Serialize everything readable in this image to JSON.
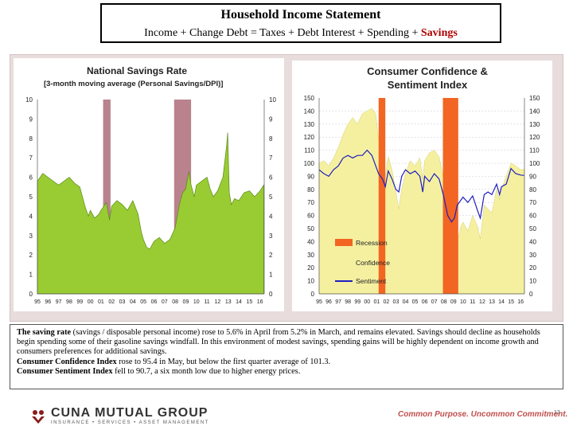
{
  "header": {
    "title": "Household Income Statement",
    "equation_main": "Income + Change Debt = Taxes + Debt Interest + Spending + ",
    "equation_highlight": "Savings"
  },
  "chart_data": [
    {
      "type": "area",
      "title": "National Savings Rate",
      "subtitle": "[3-month moving average (Personal Savings/DPI)]",
      "ylim": [
        0,
        10
      ],
      "y_ticks": [
        "0",
        "1",
        "2",
        "3",
        "4",
        "5",
        "6",
        "7",
        "8",
        "9",
        "10"
      ],
      "x_ticks": [
        "95",
        "96",
        "97",
        "98",
        "99",
        "00",
        "01",
        "02",
        "03",
        "04",
        "05",
        "06",
        "07",
        "08",
        "09",
        "10",
        "11",
        "12",
        "13",
        "14",
        "15",
        "16"
      ],
      "x_start": 1995,
      "x_end": 2016.4,
      "recessions": [
        [
          2001.2,
          2001.9
        ],
        [
          2007.9,
          2009.5
        ]
      ],
      "colors": {
        "area": "#99cc33",
        "area_edge": "#5a8a1a",
        "recession": "#b9828d"
      },
      "series": [
        {
          "values": [
            [
              1995.0,
              5.8
            ],
            [
              1995.5,
              6.2
            ],
            [
              1996.0,
              6.0
            ],
            [
              1996.5,
              5.8
            ],
            [
              1997.0,
              5.6
            ],
            [
              1997.5,
              5.8
            ],
            [
              1998.0,
              6.0
            ],
            [
              1998.5,
              5.7
            ],
            [
              1999.0,
              5.5
            ],
            [
              1999.5,
              4.5
            ],
            [
              1999.8,
              4.0
            ],
            [
              2000.0,
              4.3
            ],
            [
              2000.4,
              3.9
            ],
            [
              2000.8,
              4.1
            ],
            [
              2001.0,
              4.3
            ],
            [
              2001.5,
              4.7
            ],
            [
              2001.8,
              3.8
            ],
            [
              2002.0,
              4.5
            ],
            [
              2002.5,
              4.8
            ],
            [
              2003.0,
              4.6
            ],
            [
              2003.5,
              4.3
            ],
            [
              2004.0,
              4.8
            ],
            [
              2004.5,
              4.1
            ],
            [
              2004.8,
              3.2
            ],
            [
              2005.0,
              2.8
            ],
            [
              2005.3,
              2.4
            ],
            [
              2005.6,
              2.3
            ],
            [
              2006.0,
              2.7
            ],
            [
              2006.5,
              2.9
            ],
            [
              2007.0,
              2.6
            ],
            [
              2007.5,
              2.8
            ],
            [
              2008.0,
              3.4
            ],
            [
              2008.4,
              4.6
            ],
            [
              2008.7,
              5.2
            ],
            [
              2009.0,
              5.4
            ],
            [
              2009.3,
              6.3
            ],
            [
              2009.5,
              5.6
            ],
            [
              2009.8,
              5.0
            ],
            [
              2010.0,
              5.6
            ],
            [
              2010.5,
              5.8
            ],
            [
              2011.0,
              6.0
            ],
            [
              2011.3,
              5.4
            ],
            [
              2011.6,
              5.0
            ],
            [
              2012.0,
              5.3
            ],
            [
              2012.5,
              6.0
            ],
            [
              2012.85,
              7.6
            ],
            [
              2012.95,
              8.3
            ],
            [
              2013.1,
              5.2
            ],
            [
              2013.3,
              4.6
            ],
            [
              2013.6,
              4.9
            ],
            [
              2014.0,
              4.8
            ],
            [
              2014.5,
              5.2
            ],
            [
              2015.0,
              5.3
            ],
            [
              2015.5,
              5.0
            ],
            [
              2016.0,
              5.3
            ],
            [
              2016.35,
              5.6
            ]
          ]
        }
      ]
    },
    {
      "type": "line",
      "title": "Consumer Confidence & Sentiment Index",
      "ylim": [
        0,
        150
      ],
      "y_ticks": [
        "0",
        "10",
        "20",
        "30",
        "40",
        "50",
        "60",
        "70",
        "80",
        "90",
        "100",
        "110",
        "120",
        "130",
        "140",
        "150"
      ],
      "x_ticks": [
        "95",
        "96",
        "97",
        "98",
        "99",
        "00",
        "01",
        "02",
        "03",
        "04",
        "05",
        "06",
        "07",
        "08",
        "09",
        "10",
        "11",
        "12",
        "13",
        "14",
        "15",
        "16"
      ],
      "x_start": 1995,
      "x_end": 2016.4,
      "recessions": [
        [
          2001.2,
          2001.9
        ],
        [
          2007.9,
          2009.5
        ]
      ],
      "legend": {
        "placement": "bottom-left",
        "items": [
          "Recession",
          "Confidence",
          "Sentiment"
        ]
      },
      "colors": {
        "recession": "#f26522",
        "confidence": "#f5f0a0",
        "sentiment": "#1f1fbf"
      },
      "series": [
        {
          "name": "Confidence",
          "values": [
            [
              1995.0,
              100
            ],
            [
              1995.5,
              102
            ],
            [
              1996.0,
              98
            ],
            [
              1996.5,
              104
            ],
            [
              1997.0,
              112
            ],
            [
              1997.5,
              122
            ],
            [
              1998.0,
              130
            ],
            [
              1998.5,
              135
            ],
            [
              1999.0,
              130
            ],
            [
              1999.5,
              138
            ],
            [
              2000.0,
              140
            ],
            [
              2000.5,
              142
            ],
            [
              2000.9,
              138
            ],
            [
              2001.2,
              118
            ],
            [
              2001.6,
              108
            ],
            [
              2001.9,
              90
            ],
            [
              2002.2,
              105
            ],
            [
              2002.6,
              95
            ],
            [
              2003.0,
              78
            ],
            [
              2003.3,
              65
            ],
            [
              2003.6,
              80
            ],
            [
              2004.0,
              92
            ],
            [
              2004.5,
              102
            ],
            [
              2005.0,
              98
            ],
            [
              2005.5,
              104
            ],
            [
              2005.8,
              88
            ],
            [
              2006.0,
              102
            ],
            [
              2006.5,
              108
            ],
            [
              2007.0,
              110
            ],
            [
              2007.5,
              105
            ],
            [
              2007.8,
              95
            ],
            [
              2008.0,
              85
            ],
            [
              2008.4,
              60
            ],
            [
              2008.8,
              45
            ],
            [
              2009.1,
              26
            ],
            [
              2009.4,
              40
            ],
            [
              2009.8,
              52
            ],
            [
              2010.0,
              55
            ],
            [
              2010.5,
              48
            ],
            [
              2011.0,
              60
            ],
            [
              2011.5,
              52
            ],
            [
              2011.8,
              42
            ],
            [
              2012.2,
              68
            ],
            [
              2012.6,
              65
            ],
            [
              2013.0,
              62
            ],
            [
              2013.5,
              80
            ],
            [
              2013.8,
              72
            ],
            [
              2014.0,
              80
            ],
            [
              2014.5,
              90
            ],
            [
              2015.0,
              100
            ],
            [
              2015.5,
              98
            ],
            [
              2016.0,
              95
            ],
            [
              2016.35,
              95.4
            ]
          ]
        },
        {
          "name": "Sentiment",
          "values": [
            [
              1995.0,
              95
            ],
            [
              1995.5,
              92
            ],
            [
              1996.0,
              90
            ],
            [
              1996.5,
              95
            ],
            [
              1997.0,
              98
            ],
            [
              1997.5,
              104
            ],
            [
              1998.0,
              106
            ],
            [
              1998.5,
              104
            ],
            [
              1999.0,
              106
            ],
            [
              1999.5,
              106
            ],
            [
              2000.0,
              110
            ],
            [
              2000.5,
              106
            ],
            [
              2000.9,
              98
            ],
            [
              2001.2,
              92
            ],
            [
              2001.6,
              88
            ],
            [
              2001.9,
              82
            ],
            [
              2002.2,
              94
            ],
            [
              2002.6,
              88
            ],
            [
              2003.0,
              80
            ],
            [
              2003.3,
              78
            ],
            [
              2003.6,
              90
            ],
            [
              2004.0,
              95
            ],
            [
              2004.5,
              92
            ],
            [
              2005.0,
              94
            ],
            [
              2005.5,
              90
            ],
            [
              2005.8,
              78
            ],
            [
              2006.0,
              90
            ],
            [
              2006.5,
              86
            ],
            [
              2007.0,
              92
            ],
            [
              2007.5,
              88
            ],
            [
              2007.8,
              80
            ],
            [
              2008.0,
              74
            ],
            [
              2008.4,
              60
            ],
            [
              2008.8,
              55
            ],
            [
              2009.1,
              58
            ],
            [
              2009.4,
              68
            ],
            [
              2009.8,
              72
            ],
            [
              2010.0,
              74
            ],
            [
              2010.5,
              70
            ],
            [
              2011.0,
              75
            ],
            [
              2011.5,
              64
            ],
            [
              2011.8,
              58
            ],
            [
              2012.2,
              76
            ],
            [
              2012.6,
              78
            ],
            [
              2013.0,
              76
            ],
            [
              2013.5,
              84
            ],
            [
              2013.8,
              76
            ],
            [
              2014.0,
              82
            ],
            [
              2014.5,
              84
            ],
            [
              2015.0,
              96
            ],
            [
              2015.5,
              92
            ],
            [
              2016.0,
              91
            ],
            [
              2016.35,
              90.7
            ]
          ]
        }
      ]
    }
  ],
  "commentary": {
    "p1_bold": "The saving rate",
    "p1_rest": " (savings / disposable personal income) rose to 5.6% in April from 5.2% in March, and remains elevated.  Savings should decline as households begin spending some of their gasoline savings windfall. In this environment of modest savings, spending gains will be highly dependent on income growth and consumers preferences for additional savings.",
    "p2_bold": "Consumer Confidence Index",
    "p2_rest": " rose to 95.4 in May, but below the first quarter average of 101.3.",
    "p3_bold": "Consumer Sentiment Index",
    "p3_rest": " fell to 90.7, a six month low due to higher energy prices."
  },
  "footer": {
    "logo_name": "CUNA MUTUAL GROUP",
    "logo_tagline": "INSURANCE • SERVICES • ASSET MANAGEMENT",
    "slogan": "Common Purpose. Uncommon Commitment.",
    "page_number": "13"
  }
}
